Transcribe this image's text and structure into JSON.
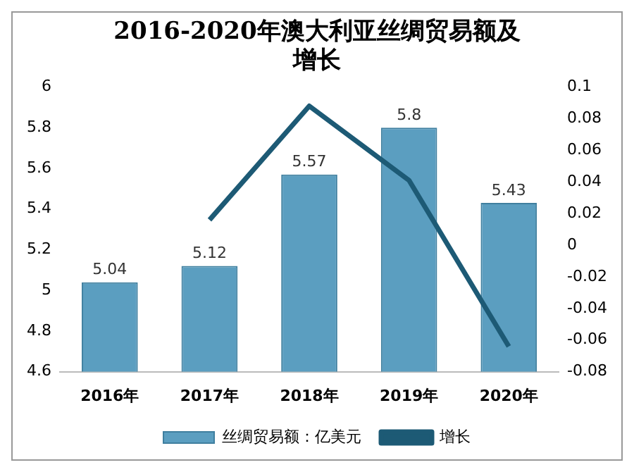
{
  "chart_data": {
    "type": "bar",
    "title": [
      "2016-2020年澳大利亚丝绸贸易额及",
      "增长"
    ],
    "categories": [
      "2016年",
      "2017年",
      "2018年",
      "2019年",
      "2020年"
    ],
    "series": [
      {
        "name": "丝绸贸易额：亿美元",
        "color": "#5b9ec0",
        "values": [
          5.04,
          5.12,
          5.57,
          5.8,
          5.43
        ],
        "value_labels": [
          "5.04",
          "5.12",
          "5.57",
          "5.8",
          "5.43"
        ]
      },
      {
        "name": "增长",
        "type": "line",
        "axis": "y2",
        "color": "#1d5a75",
        "values": [
          null,
          0.016,
          0.088,
          0.041,
          -0.064
        ]
      }
    ],
    "ylim": [
      4.6,
      6
    ],
    "yticks": [
      4.6,
      4.8,
      5,
      5.2,
      5.4,
      5.6,
      5.8,
      6
    ],
    "y2lim": [
      -0.08,
      0.1
    ],
    "y2ticks": [
      -0.08,
      -0.06,
      -0.04,
      -0.02,
      0,
      0.02,
      0.04,
      0.06,
      0.08,
      0.1
    ],
    "grid": false,
    "legend": "bottom",
    "marker": "none",
    "line_style": "solid"
  }
}
